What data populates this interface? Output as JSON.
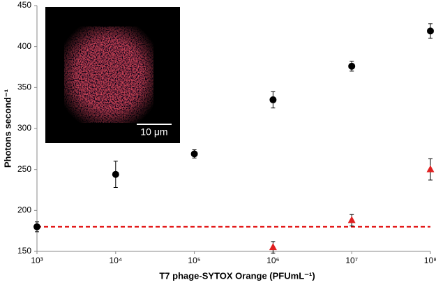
{
  "chart_data": {
    "type": "scatter",
    "x_label": "T7 phage-SYTOX Orange (PFUmL⁻¹)",
    "y_label": "Photons second⁻¹",
    "log_x": true,
    "xlim": [
      1000,
      100000000
    ],
    "xticks": [
      {
        "value": 1000,
        "label": "10³"
      },
      {
        "value": 10000,
        "label": "10⁴"
      },
      {
        "value": 100000,
        "label": "10⁵"
      },
      {
        "value": 1000000,
        "label": "10⁶"
      },
      {
        "value": 10000000,
        "label": "10⁷"
      },
      {
        "value": 100000000,
        "label": "10⁸"
      }
    ],
    "ylim": [
      150,
      450
    ],
    "yticks": [
      150,
      200,
      250,
      300,
      350,
      400,
      450
    ],
    "series": [
      {
        "color": "#000000",
        "marker": "circle",
        "x": [
          1000,
          10000,
          100000,
          1000000,
          10000000,
          100000000
        ],
        "values": [
          180,
          244,
          269,
          335,
          376,
          419
        ],
        "errors": [
          6,
          16,
          5,
          10,
          6,
          9
        ]
      },
      {
        "color": "#e02020",
        "marker": "triangle",
        "x": [
          1000000,
          10000000,
          100000000
        ],
        "values": [
          155,
          188,
          250
        ],
        "errors": [
          7,
          7,
          13
        ]
      }
    ],
    "reference_line": {
      "value": 180,
      "color": "#e00000"
    },
    "inset": {
      "scale_label": "10 μm"
    }
  }
}
